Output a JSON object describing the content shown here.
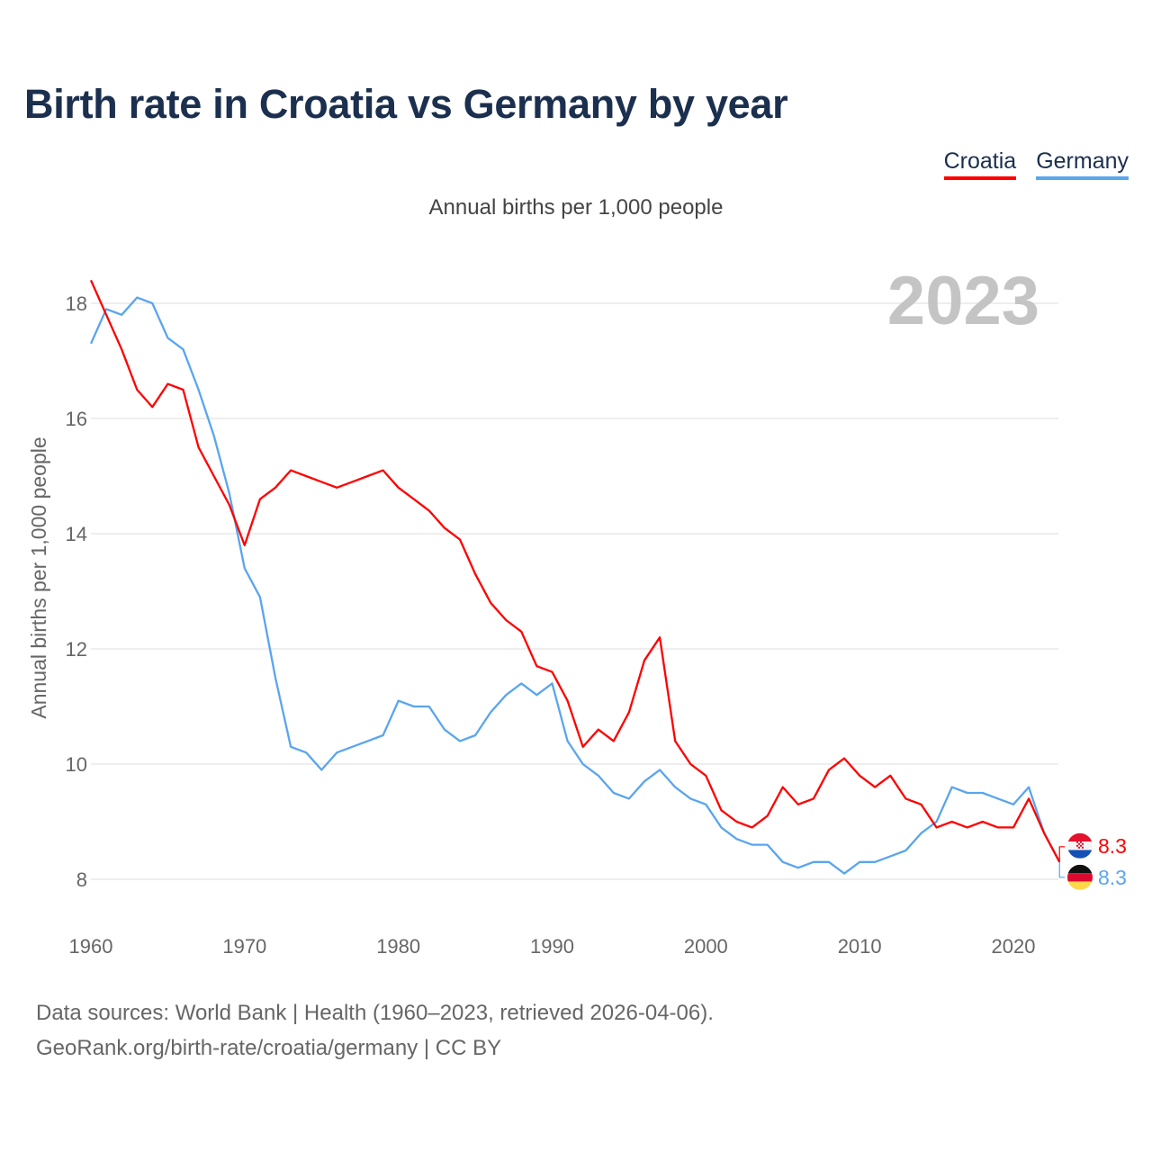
{
  "title": "Birth rate in Croatia vs Germany by year",
  "subtitle": "Annual births per 1,000 people",
  "year_badge": "2023",
  "source_line1": "Data sources: World Bank | Health (1960–2023, retrieved 2026-04-06).",
  "source_line2": "GeoRank.org/birth-rate/croatia/germany | CC BY",
  "chart_data": {
    "type": "line",
    "title": "Birth rate in Croatia vs Germany by year",
    "xlabel": "",
    "ylabel": "Annual births per 1,000 people",
    "xlim": [
      1960,
      2023
    ],
    "ylim": [
      7.2,
      18.6
    ],
    "grid": true,
    "legend_position": "top-right",
    "x_ticks": [
      "1960",
      "1970",
      "1980",
      "1990",
      "2000",
      "2010",
      "2020"
    ],
    "y_ticks": [
      "8",
      "10",
      "12",
      "14",
      "16",
      "18"
    ],
    "x": [
      1960,
      1961,
      1962,
      1963,
      1964,
      1965,
      1966,
      1967,
      1968,
      1969,
      1970,
      1971,
      1972,
      1973,
      1974,
      1975,
      1976,
      1977,
      1978,
      1979,
      1980,
      1981,
      1982,
      1983,
      1984,
      1985,
      1986,
      1987,
      1988,
      1989,
      1990,
      1991,
      1992,
      1993,
      1994,
      1995,
      1996,
      1997,
      1998,
      1999,
      2000,
      2001,
      2002,
      2003,
      2004,
      2005,
      2006,
      2007,
      2008,
      2009,
      2010,
      2011,
      2012,
      2013,
      2014,
      2015,
      2016,
      2017,
      2018,
      2019,
      2020,
      2021,
      2022,
      2023
    ],
    "series": [
      {
        "name": "Croatia",
        "color": "#ff0000",
        "end_label": "8.3",
        "values": [
          18.4,
          17.8,
          17.2,
          16.5,
          16.2,
          16.6,
          16.5,
          15.5,
          15.0,
          14.5,
          13.8,
          14.6,
          14.8,
          15.1,
          15.0,
          14.9,
          14.8,
          14.9,
          15.0,
          15.1,
          14.8,
          14.6,
          14.4,
          14.1,
          13.9,
          13.3,
          12.8,
          12.5,
          12.3,
          11.7,
          11.6,
          11.1,
          10.3,
          10.6,
          10.4,
          10.9,
          11.8,
          12.2,
          10.4,
          10.0,
          9.8,
          9.2,
          9.0,
          8.9,
          9.1,
          9.6,
          9.3,
          9.4,
          9.9,
          10.1,
          9.8,
          9.6,
          9.8,
          9.4,
          9.3,
          8.9,
          9.0,
          8.9,
          9.0,
          8.9,
          8.9,
          9.4,
          8.8,
          8.3
        ]
      },
      {
        "name": "Germany",
        "color": "#5aa5ee",
        "end_label": "8.3",
        "values": [
          17.3,
          17.9,
          17.8,
          18.1,
          18.0,
          17.4,
          17.2,
          16.5,
          15.7,
          14.7,
          13.4,
          12.9,
          11.5,
          10.3,
          10.2,
          9.9,
          10.2,
          10.3,
          10.4,
          10.5,
          11.1,
          11.0,
          11.0,
          10.6,
          10.4,
          10.5,
          10.9,
          11.2,
          11.4,
          11.2,
          11.4,
          10.4,
          10.0,
          9.8,
          9.5,
          9.4,
          9.7,
          9.9,
          9.6,
          9.4,
          9.3,
          8.9,
          8.7,
          8.6,
          8.6,
          8.3,
          8.2,
          8.3,
          8.3,
          8.1,
          8.3,
          8.3,
          8.4,
          8.5,
          8.8,
          9.0,
          9.6,
          9.5,
          9.5,
          9.4,
          9.3,
          9.6,
          8.8,
          8.3
        ]
      }
    ]
  }
}
